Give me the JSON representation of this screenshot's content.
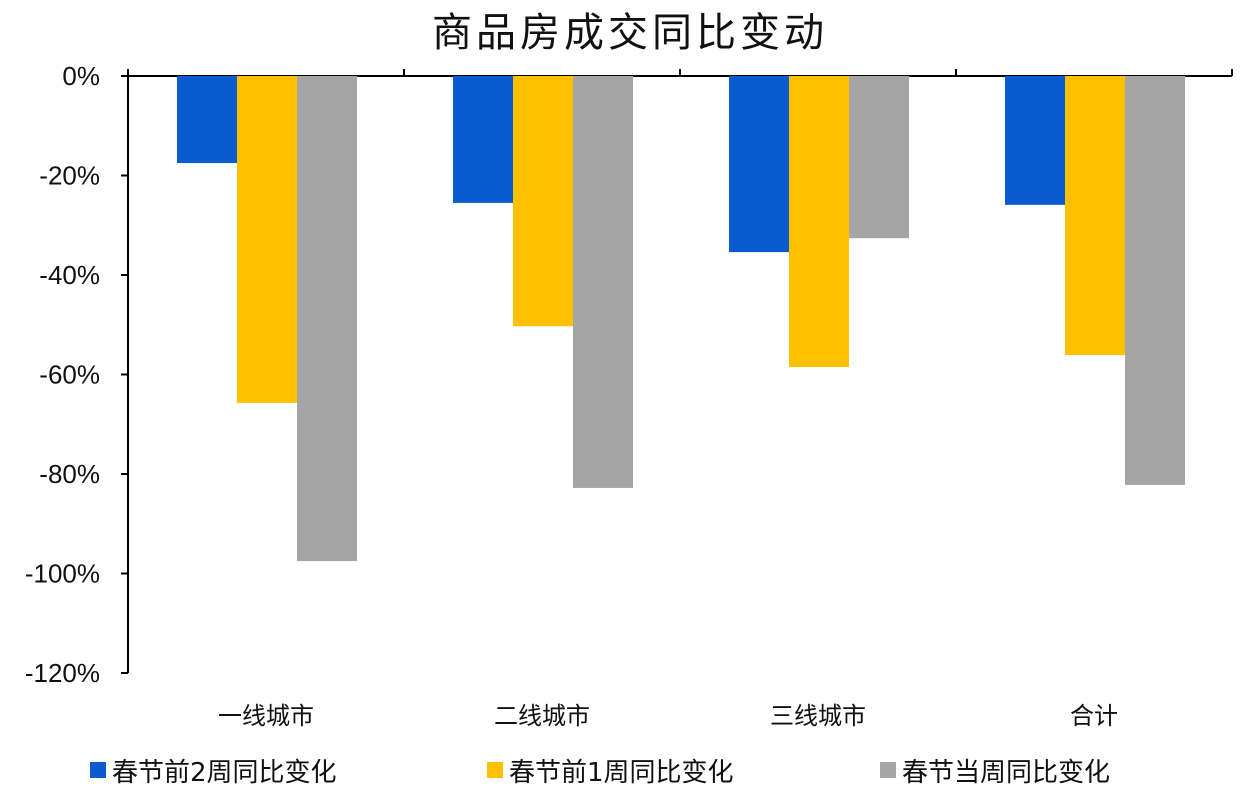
{
  "chart_data": {
    "type": "bar",
    "title": "商品房成交同比变动",
    "categories": [
      "一线城市",
      "二线城市",
      "三线城市",
      "合计"
    ],
    "series": [
      {
        "name": "春节前2周同比变化",
        "color": "#0A5BD0",
        "values": [
          -17.5,
          -25.5,
          -35.4,
          -25.9
        ]
      },
      {
        "name": "春节前1周同比变化",
        "color": "#FFC000",
        "values": [
          -65.7,
          -50.3,
          -58.5,
          -56.1
        ]
      },
      {
        "name": "春节当周同比变化",
        "color": "#A5A5A5",
        "values": [
          -97.5,
          -82.8,
          -32.6,
          -82.2
        ]
      }
    ],
    "ylim": [
      -120,
      0
    ],
    "yticks": [
      "0%",
      "-20%",
      "-40%",
      "-60%",
      "-80%",
      "-100%",
      "-120%"
    ],
    "xlabel": "",
    "ylabel": "",
    "grid": false,
    "legend": "bottom"
  }
}
